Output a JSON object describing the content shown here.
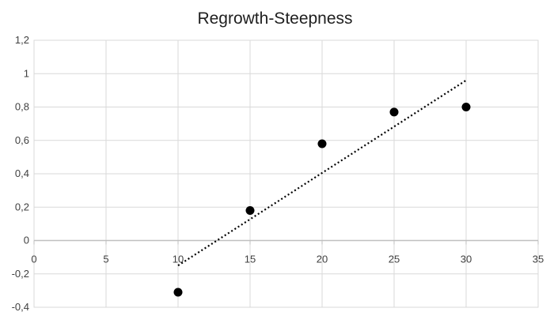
{
  "chart_data": {
    "type": "scatter",
    "title": "Regrowth-Steepness",
    "xlabel": "",
    "ylabel": "",
    "xlim": [
      0,
      35
    ],
    "ylim": [
      -0.4,
      1.2
    ],
    "x_ticks": [
      0,
      5,
      10,
      15,
      20,
      25,
      30,
      35
    ],
    "y_ticks": [
      1.2,
      1,
      0.8,
      0.6,
      0.4,
      0.2,
      0,
      -0.2,
      -0.4
    ],
    "x_tick_labels": [
      "0",
      "5",
      "10",
      "15",
      "20",
      "25",
      "30",
      "35"
    ],
    "y_tick_labels": [
      "1,2",
      "1",
      "0,8",
      "0,6",
      "0,4",
      "0,2",
      "0",
      "-0,2",
      "-0,4"
    ],
    "grid": true,
    "points": [
      {
        "x": 10,
        "y": -0.31
      },
      {
        "x": 15,
        "y": 0.18
      },
      {
        "x": 20,
        "y": 0.58
      },
      {
        "x": 25,
        "y": 0.77
      },
      {
        "x": 30,
        "y": 0.8
      }
    ],
    "trendline": {
      "style": "dotted",
      "linear": true,
      "x_start": 10,
      "y_start": -0.15,
      "x_end": 30,
      "y_end": 0.96
    },
    "colors": {
      "marker": "#000000",
      "trendline": "#000000",
      "grid": "#d9d9d9",
      "axis": "#bfbfbf"
    }
  }
}
